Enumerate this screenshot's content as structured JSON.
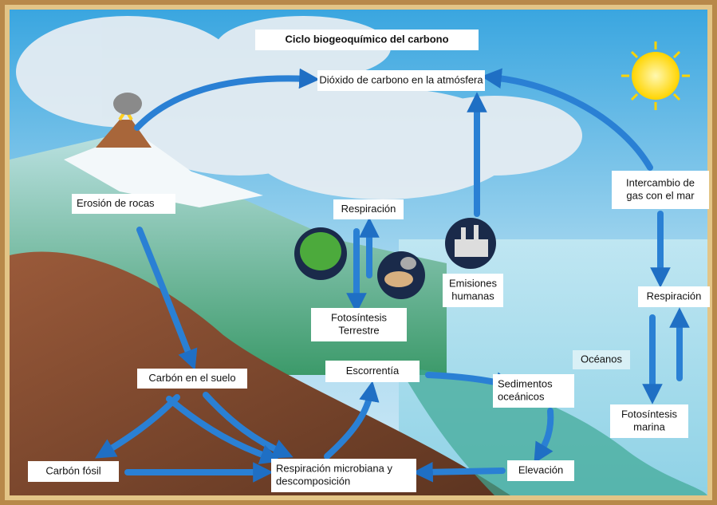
{
  "title": "Ciclo biogeoquímico del carbono",
  "labels": [
    {
      "lines": [
        "Dióxido de carbono en la atmósfera"
      ]
    },
    {
      "lines": [
        "Erosión de rocas"
      ]
    },
    {
      "lines": [
        "Respiración"
      ]
    },
    {
      "lines": [
        "Intercambio de",
        "gas con el mar"
      ]
    },
    {
      "lines": [
        "Emisiones",
        "humanas"
      ]
    },
    {
      "lines": [
        "Respiración"
      ]
    },
    {
      "lines": [
        "Fotosíntesis",
        "Terrestre"
      ]
    },
    {
      "lines": [
        "Océanos"
      ]
    },
    {
      "lines": [
        "Carbón en el suelo"
      ]
    },
    {
      "lines": [
        "Escorrentía"
      ]
    },
    {
      "lines": [
        "Sedimentos",
        "oceánicos"
      ]
    },
    {
      "lines": [
        "Fotosíntesis",
        "marina"
      ]
    },
    {
      "lines": [
        "Carbón fósil"
      ]
    },
    {
      "lines": [
        "Respiración microbiana y",
        "descomposición"
      ]
    },
    {
      "lines": [
        "Elevación"
      ]
    }
  ]
}
